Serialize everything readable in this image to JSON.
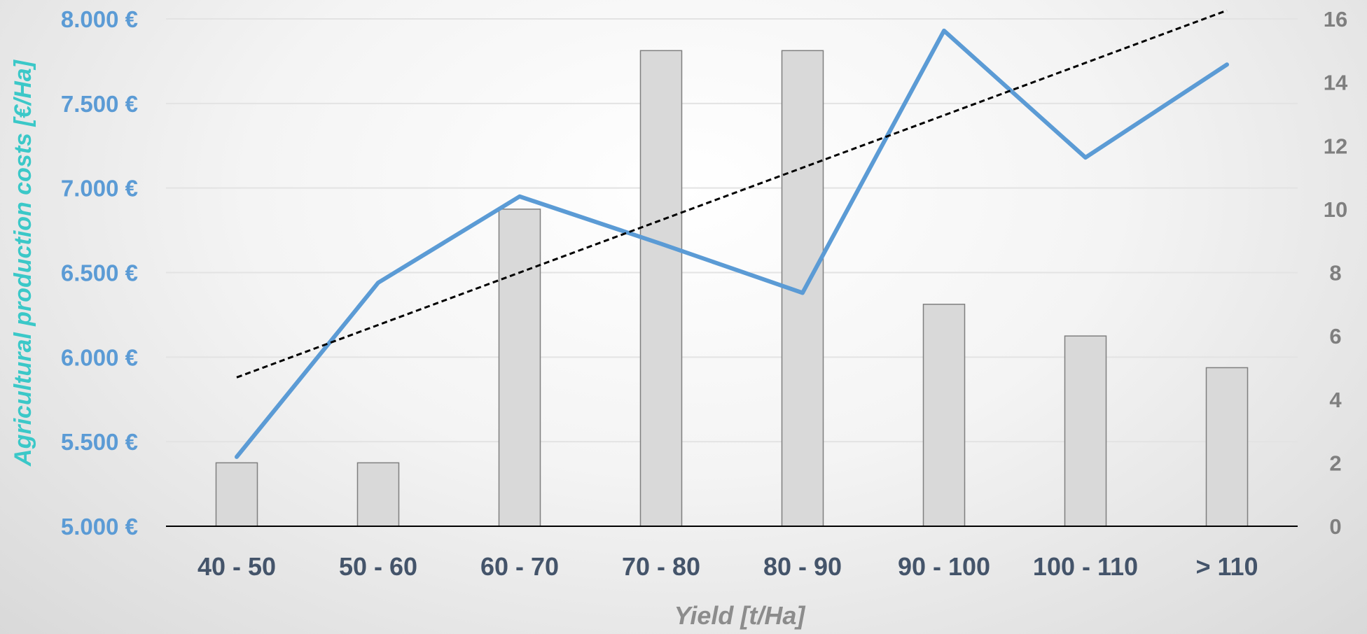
{
  "chart_data": {
    "type": "bar",
    "title": "",
    "xlabel": "Yield  [t/Ha]",
    "ylabel": "Agricultural  production  costs   [€/Ha]",
    "y2label": "",
    "categories": [
      "40 - 50",
      "50 - 60",
      "60 - 70",
      "70 - 80",
      "80 - 90",
      "90 - 100",
      "100 - 110",
      "> 110"
    ],
    "y_ticks": [
      "5.000 €",
      "5.500 €",
      "6.000 €",
      "6.500 €",
      "7.000 €",
      "7.500 €",
      "8.000 €"
    ],
    "y2_ticks": [
      "0",
      "2",
      "4",
      "6",
      "8",
      "10",
      "12",
      "14",
      "16"
    ],
    "ylim": [
      5000,
      8000
    ],
    "y2lim": [
      0,
      16
    ],
    "grid": true,
    "series": [
      {
        "type": "bar",
        "axis": "right",
        "color": "#d9d9d9",
        "values": [
          2,
          2,
          10,
          15,
          15,
          7,
          6,
          5
        ]
      },
      {
        "type": "line",
        "axis": "left",
        "color": "#5b9bd5",
        "values": [
          5410,
          6440,
          6950,
          6670,
          6380,
          7930,
          7180,
          7730
        ]
      },
      {
        "type": "line",
        "axis": "left",
        "style": "dashed",
        "color": "#000000",
        "values": [
          5880,
          6190,
          6500,
          6810,
          7120,
          7430,
          7740,
          8050
        ]
      }
    ]
  }
}
